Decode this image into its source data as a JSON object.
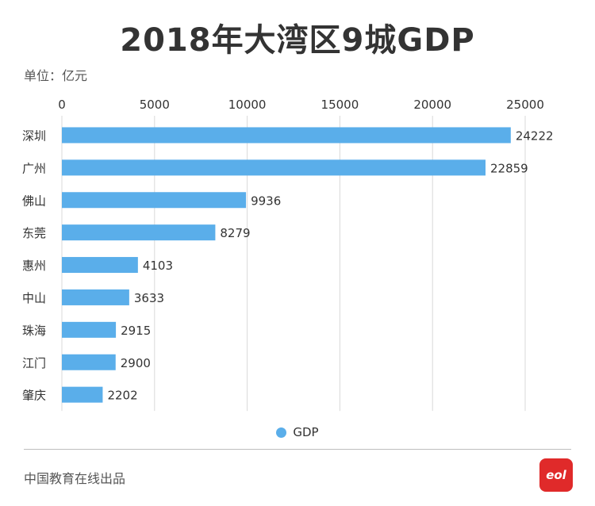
{
  "header": {
    "title": "2018年大湾区9城GDP",
    "unit_label": "单位：亿元"
  },
  "chart_data": {
    "type": "bar",
    "orientation": "horizontal",
    "title": "2018年大湾区9城GDP",
    "xlabel": "",
    "ylabel": "",
    "xlim": [
      0,
      25000
    ],
    "ticks": [
      0,
      5000,
      10000,
      15000,
      20000,
      25000
    ],
    "tick_position": "top",
    "grid": true,
    "categories": [
      "深圳",
      "广州",
      "佛山",
      "东莞",
      "惠州",
      "中山",
      "珠海",
      "江门",
      "肇庆"
    ],
    "series": [
      {
        "name": "GDP",
        "values": [
          24222,
          22859,
          9936,
          8279,
          4103,
          3633,
          2915,
          2900,
          2202
        ]
      }
    ],
    "legend_position": "bottom-center"
  },
  "legend": {
    "label": "GDP"
  },
  "footer": {
    "source": "中国教育在线出品",
    "logo_text": "eol"
  },
  "colors": {
    "bar": "#5aaeea",
    "grid": "#d9d9d9",
    "text": "#333333",
    "logo": "#e02a2a"
  }
}
